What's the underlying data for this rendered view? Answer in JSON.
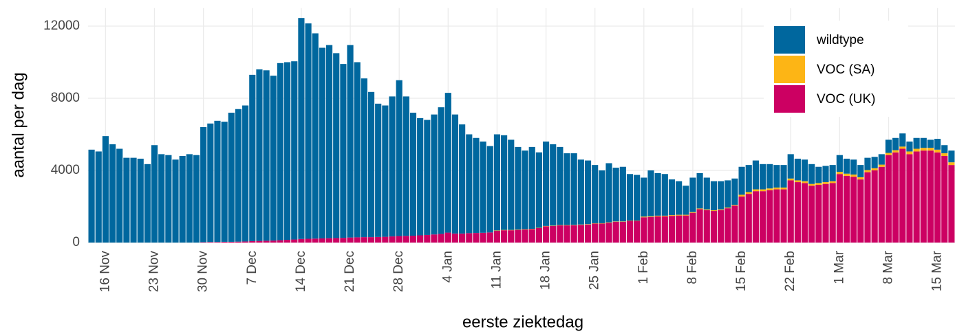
{
  "chart_data": {
    "type": "stacked_bar",
    "x_label": "eerste ziektedag",
    "y_label": "aantal per dag",
    "categories": [
      null,
      null,
      "16 Nov",
      null,
      null,
      null,
      null,
      null,
      null,
      "23 Nov",
      null,
      null,
      null,
      null,
      null,
      null,
      "30 Nov",
      null,
      null,
      null,
      null,
      null,
      null,
      "7 Dec",
      null,
      null,
      null,
      null,
      null,
      null,
      "14 Dec",
      null,
      null,
      null,
      null,
      null,
      null,
      "21 Dec",
      null,
      null,
      null,
      null,
      null,
      null,
      "28 Dec",
      null,
      null,
      null,
      null,
      null,
      null,
      "4 Jan",
      null,
      null,
      null,
      null,
      null,
      null,
      "11 Jan",
      null,
      null,
      null,
      null,
      null,
      null,
      "18 Jan",
      null,
      null,
      null,
      null,
      null,
      null,
      "25 Jan",
      null,
      null,
      null,
      null,
      null,
      null,
      "1 Feb",
      null,
      null,
      null,
      null,
      null,
      null,
      "8 Feb",
      null,
      null,
      null,
      null,
      null,
      null,
      "15 Feb",
      null,
      null,
      null,
      null,
      null,
      null,
      "22 Feb",
      null,
      null,
      null,
      null,
      null,
      null,
      "1 Mar",
      null,
      null,
      null,
      null,
      null,
      null,
      "8 Mar",
      null,
      null,
      null,
      null,
      null,
      null,
      "15 Mar",
      null,
      null
    ],
    "series": [
      {
        "name": "wildtype",
        "color": "#00679e",
        "values": [
          5150,
          5050,
          5900,
          5450,
          5200,
          4700,
          4700,
          4650,
          4350,
          5400,
          4900,
          4850,
          4600,
          4800,
          4900,
          4850,
          6380,
          6570,
          6720,
          6660,
          7160,
          7350,
          7540,
          9220,
          9510,
          9450,
          9140,
          9820,
          9850,
          9880,
          12250,
          11940,
          11380,
          10570,
          10710,
          10250,
          9640,
          10670,
          9710,
          8800,
          8050,
          7390,
          7280,
          7760,
          8640,
          7730,
          6820,
          6500,
          6380,
          6650,
          7020,
          7750,
          6600,
          6050,
          5480,
          5270,
          5060,
          4790,
          5330,
          5250,
          5000,
          4580,
          4360,
          4540,
          4180,
          4680,
          4510,
          4330,
          3980,
          3970,
          3600,
          3530,
          3230,
          2930,
          3280,
          2980,
          3030,
          2580,
          2530,
          2160,
          2540,
          2360,
          2310,
          1980,
          1860,
          1610,
          1910,
          1960,
          1760,
          1610,
          1560,
          1510,
          1460,
          1550,
          1500,
          1600,
          1400,
          1350,
          1250,
          1250,
          1350,
          1200,
          1200,
          1100,
          900,
          900,
          900,
          930,
          830,
          830,
          680,
          680,
          630,
          580,
          730,
          680,
          730,
          550,
          600,
          550,
          450,
          600,
          450,
          650
        ]
      },
      {
        "name": "VOC (SA)",
        "color": "#fdb515",
        "values": [
          0,
          0,
          0,
          0,
          0,
          0,
          0,
          0,
          0,
          0,
          0,
          0,
          0,
          0,
          0,
          0,
          0,
          0,
          0,
          0,
          0,
          0,
          0,
          0,
          0,
          0,
          0,
          0,
          0,
          0,
          0,
          0,
          0,
          0,
          0,
          0,
          0,
          0,
          0,
          0,
          0,
          0,
          0,
          0,
          0,
          0,
          0,
          0,
          0,
          0,
          0,
          0,
          0,
          0,
          0,
          0,
          0,
          0,
          20,
          20,
          20,
          20,
          20,
          20,
          20,
          20,
          20,
          20,
          20,
          20,
          20,
          20,
          20,
          20,
          20,
          20,
          20,
          20,
          20,
          40,
          40,
          40,
          40,
          40,
          40,
          40,
          40,
          40,
          40,
          40,
          40,
          40,
          40,
          100,
          100,
          100,
          100,
          100,
          100,
          100,
          100,
          100,
          100,
          100,
          100,
          100,
          100,
          120,
          120,
          120,
          120,
          120,
          120,
          120,
          120,
          120,
          120,
          150,
          150,
          150,
          150,
          150,
          150,
          150
        ]
      },
      {
        "name": "VOC (UK)",
        "color": "#cc0062",
        "values": [
          0,
          0,
          0,
          0,
          0,
          0,
          0,
          0,
          0,
          0,
          0,
          0,
          0,
          0,
          0,
          0,
          20,
          30,
          30,
          40,
          40,
          50,
          60,
          80,
          90,
          100,
          110,
          130,
          150,
          170,
          200,
          210,
          220,
          230,
          240,
          250,
          260,
          280,
          290,
          300,
          300,
          310,
          320,
          340,
          360,
          370,
          380,
          400,
          420,
          450,
          480,
          550,
          500,
          500,
          520,
          530,
          540,
          560,
          650,
          680,
          680,
          700,
          720,
          740,
          800,
          900,
          920,
          950,
          950,
          960,
          980,
          1000,
          1050,
          1050,
          1100,
          1150,
          1150,
          1200,
          1200,
          1400,
          1420,
          1450,
          1450,
          1480,
          1500,
          1500,
          1650,
          1850,
          1800,
          1750,
          1800,
          1900,
          2050,
          2550,
          2700,
          2850,
          2850,
          2900,
          2950,
          2950,
          3450,
          3350,
          3300,
          3150,
          3200,
          3250,
          3300,
          3800,
          3700,
          3650,
          3500,
          3900,
          4000,
          4200,
          4850,
          5000,
          5200,
          4900,
          5050,
          5100,
          5100,
          5000,
          4800,
          4300
        ]
      }
    ],
    "ylim": [
      0,
      13000
    ],
    "yticks": [
      0,
      4000,
      8000,
      12000
    ],
    "grid": true,
    "legend": "top-right"
  }
}
